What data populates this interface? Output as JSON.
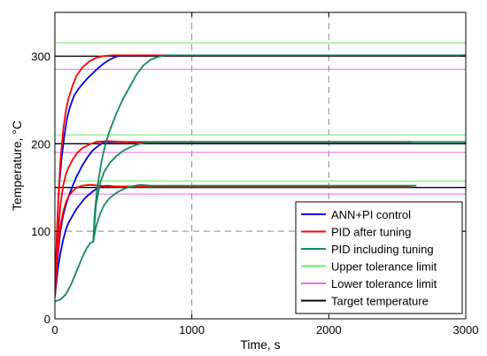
{
  "chart_data": {
    "type": "line",
    "xlabel": "Time, s",
    "ylabel": "Temperature, °C",
    "xlim": [
      0,
      3000
    ],
    "ylim": [
      0,
      350
    ],
    "xticks": [
      0,
      1000,
      2000,
      3000
    ],
    "yticks": [
      0,
      100,
      200,
      300
    ],
    "x_tick_labels": [
      "0",
      "1000",
      "2000",
      "3000"
    ],
    "y_tick_labels": [
      "0",
      "100",
      "200",
      "300"
    ],
    "grid": "dashed at x=1000, x=2000 and y=100",
    "legend_position": "bottom-right",
    "setpoints": [
      150,
      200,
      300
    ],
    "tolerance_limits": {
      "upper": [
        157.5,
        210,
        315
      ],
      "lower": [
        142.5,
        190,
        285
      ]
    },
    "series": [
      {
        "name": "ANN+PI control",
        "color": "#0000dd",
        "curves": [
          [
            [
              0,
              25
            ],
            [
              20,
              55
            ],
            [
              40,
              75
            ],
            [
              60,
              90
            ],
            [
              80,
              102
            ],
            [
              100,
              110
            ],
            [
              130,
              118
            ],
            [
              160,
              126
            ],
            [
              190,
              132
            ],
            [
              220,
              138
            ],
            [
              250,
              142
            ],
            [
              280,
              146
            ],
            [
              310,
              149
            ],
            [
              340,
              151
            ],
            [
              380,
              152
            ],
            [
              450,
              151
            ],
            [
              1000,
              151
            ],
            [
              2000,
              151
            ],
            [
              2500,
              151
            ],
            [
              2600,
              151
            ]
          ],
          [
            [
              0,
              25
            ],
            [
              20,
              70
            ],
            [
              40,
              100
            ],
            [
              60,
              118
            ],
            [
              80,
              130
            ],
            [
              100,
              140
            ],
            [
              130,
              152
            ],
            [
              160,
              163
            ],
            [
              200,
              175
            ],
            [
              240,
              185
            ],
            [
              280,
              193
            ],
            [
              320,
              198
            ],
            [
              350,
              201
            ],
            [
              380,
              202
            ],
            [
              500,
              202
            ],
            [
              1000,
              202
            ],
            [
              2000,
              202
            ],
            [
              2600,
              202
            ]
          ],
          [
            [
              0,
              25
            ],
            [
              15,
              100
            ],
            [
              30,
              150
            ],
            [
              50,
              185
            ],
            [
              70,
              210
            ],
            [
              90,
              230
            ],
            [
              110,
              242
            ],
            [
              140,
              255
            ],
            [
              170,
              262
            ],
            [
              200,
              268
            ],
            [
              240,
              275
            ],
            [
              280,
              281
            ],
            [
              320,
              287
            ],
            [
              360,
              292
            ],
            [
              400,
              296
            ],
            [
              440,
              299
            ],
            [
              480,
              301
            ],
            [
              550,
              301
            ],
            [
              1000,
              301
            ],
            [
              2000,
              301
            ],
            [
              2600,
              301
            ]
          ]
        ]
      },
      {
        "name": "PID after tuning",
        "color": "#ff0000",
        "curves": [
          [
            [
              0,
              25
            ],
            [
              20,
              75
            ],
            [
              40,
              105
            ],
            [
              60,
              122
            ],
            [
              80,
              133
            ],
            [
              100,
              140
            ],
            [
              130,
              146
            ],
            [
              160,
              150
            ],
            [
              200,
              152
            ],
            [
              260,
              153
            ],
            [
              320,
              152
            ],
            [
              450,
              151
            ],
            [
              1000,
              151
            ],
            [
              2000,
              151
            ],
            [
              2600,
              151
            ]
          ],
          [
            [
              0,
              25
            ],
            [
              20,
              90
            ],
            [
              40,
              130
            ],
            [
              60,
              152
            ],
            [
              80,
              165
            ],
            [
              100,
              173
            ],
            [
              130,
              182
            ],
            [
              160,
              189
            ],
            [
              200,
              195
            ],
            [
              250,
              199
            ],
            [
              300,
              202
            ],
            [
              380,
              203
            ],
            [
              500,
              202
            ],
            [
              1000,
              202
            ],
            [
              2000,
              202
            ],
            [
              2600,
              202
            ]
          ],
          [
            [
              0,
              25
            ],
            [
              20,
              120
            ],
            [
              40,
              180
            ],
            [
              60,
              215
            ],
            [
              80,
              238
            ],
            [
              100,
              252
            ],
            [
              130,
              267
            ],
            [
              160,
              278
            ],
            [
              200,
              287
            ],
            [
              250,
              294
            ],
            [
              300,
              298
            ],
            [
              350,
              300
            ],
            [
              420,
              301
            ],
            [
              600,
              301
            ],
            [
              1000,
              301
            ],
            [
              2000,
              301
            ],
            [
              3000,
              301
            ]
          ]
        ]
      },
      {
        "name": "PID including tuning",
        "color": "#138a5a",
        "curves": [
          [
            [
              0,
              20
            ],
            [
              40,
              22
            ],
            [
              80,
              28
            ],
            [
              120,
              40
            ],
            [
              160,
              55
            ],
            [
              200,
              70
            ],
            [
              230,
              80
            ],
            [
              260,
              87
            ],
            [
              280,
              88
            ],
            [
              300,
              105
            ],
            [
              330,
              120
            ],
            [
              360,
              130
            ],
            [
              400,
              138
            ],
            [
              450,
              144
            ],
            [
              500,
              148
            ],
            [
              550,
              151
            ],
            [
              620,
              153
            ],
            [
              700,
              152
            ],
            [
              1000,
              152
            ],
            [
              2000,
              152
            ],
            [
              2640,
              152
            ]
          ],
          [
            [
              280,
              88
            ],
            [
              300,
              130
            ],
            [
              330,
              155
            ],
            [
              360,
              168
            ],
            [
              400,
              178
            ],
            [
              450,
              186
            ],
            [
              500,
              192
            ],
            [
              550,
              196
            ],
            [
              600,
              199
            ],
            [
              650,
              201
            ],
            [
              700,
              202
            ],
            [
              800,
              202
            ],
            [
              1000,
              202
            ],
            [
              2000,
              202
            ],
            [
              3000,
              202
            ]
          ],
          [
            [
              280,
              88
            ],
            [
              290,
              120
            ],
            [
              310,
              150
            ],
            [
              340,
              180
            ],
            [
              370,
              200
            ],
            [
              400,
              215
            ],
            [
              450,
              235
            ],
            [
              500,
              252
            ],
            [
              550,
              266
            ],
            [
              600,
              280
            ],
            [
              650,
              290
            ],
            [
              700,
              296
            ],
            [
              750,
              299
            ],
            [
              800,
              301
            ],
            [
              900,
              301
            ],
            [
              1000,
              301
            ],
            [
              2000,
              301
            ],
            [
              3000,
              301
            ]
          ]
        ]
      },
      {
        "name": "Upper tolerance limit",
        "color": "#66ee66",
        "hlines": [
          157.5,
          210,
          315
        ]
      },
      {
        "name": "Lower tolerance limit",
        "color": "#ee66ee",
        "hlines": [
          142.5,
          190,
          285
        ]
      },
      {
        "name": "Target temperature",
        "color": "#000000",
        "hlines": [
          150,
          200,
          300
        ]
      }
    ]
  }
}
